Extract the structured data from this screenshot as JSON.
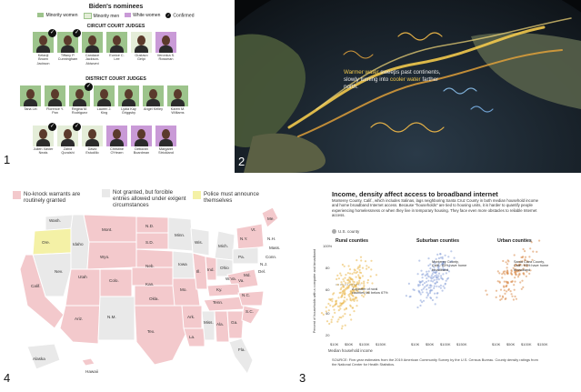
{
  "colors": {
    "minority_women": "#9dc48c",
    "minority_men": "#e4edd8",
    "white_women": "#c99ad7",
    "no_knock_granted": "#f3c9cc",
    "not_granted": "#e9e9e9",
    "police_announce": "#f4f1a6",
    "rural": "#e9b64b",
    "suburban": "#8aa3d9",
    "urban": "#d98a4b"
  },
  "panel_numbers": [
    "1",
    "2",
    "3",
    "4"
  ],
  "panel1": {
    "title": "Biden's nominees",
    "legend": [
      {
        "label": "Minority women",
        "color": "#9dc48c"
      },
      {
        "label": "Minority men",
        "color": "#e4edd8"
      },
      {
        "label": "White women",
        "color": "#c99ad7"
      },
      {
        "label": "Confirmed",
        "color": "#111111",
        "icon": "check-icon"
      }
    ],
    "circuit_title": "CIRCUIT COURT JUDGES",
    "district_title": "DISTRICT COURT JUDGES",
    "circuit": [
      {
        "name": "Ketanji Brown Jackson",
        "cat": "minority_women",
        "confirmed": true
      },
      {
        "name": "Tiffany P. Cunningham",
        "cat": "minority_women",
        "confirmed": true
      },
      {
        "name": "Candace Jackson-Akiwumi",
        "cat": "minority_women",
        "confirmed": false
      },
      {
        "name": "Eunice C. Lee",
        "cat": "minority_women",
        "confirmed": false
      },
      {
        "name": "Gustavo Gelpí",
        "cat": "minority_men",
        "confirmed": false
      },
      {
        "name": "Veronica S. Rossman",
        "cat": "white_women",
        "confirmed": false
      }
    ],
    "district_row1": [
      {
        "name": "Tana Lin",
        "cat": "minority_women",
        "confirmed": false
      },
      {
        "name": "Florence Y. Pan",
        "cat": "minority_women",
        "confirmed": false
      },
      {
        "name": "Regina M. Rodriguez",
        "cat": "minority_women",
        "confirmed": true
      },
      {
        "name": "Lauren J. King",
        "cat": "minority_women",
        "confirmed": false
      },
      {
        "name": "Lydia Kay Griggsby",
        "cat": "minority_women",
        "confirmed": false
      },
      {
        "name": "Angel Kelley",
        "cat": "minority_women",
        "confirmed": false
      },
      {
        "name": "Karen M. Williams",
        "cat": "minority_women",
        "confirmed": false
      }
    ],
    "district_row2": [
      {
        "name": "Julien Xavier Neals",
        "cat": "minority_men",
        "confirmed": true
      },
      {
        "name": "Zahid Quraishi",
        "cat": "minority_men",
        "confirmed": true
      },
      {
        "name": "David Estudillo",
        "cat": "minority_men",
        "confirmed": false
      },
      {
        "name": "Christine O'Hearn",
        "cat": "white_women",
        "confirmed": false
      },
      {
        "name": "Deborah Boardman",
        "cat": "white_women",
        "confirmed": false
      },
      {
        "name": "Margaret Strickland",
        "cat": "white_women",
        "confirmed": false
      }
    ]
  },
  "panel2": {
    "annotation_pre": "Warmer water",
    "annotation_mid": " sweeps past continents, slowly turning into ",
    "annotation_cool": "cooler water",
    "annotation_post": " farther north."
  },
  "panel4": {
    "legend": [
      {
        "label": "No-knock warrants are routinely granted",
        "color": "#f3c9cc"
      },
      {
        "label": "Not granted, but forcible entries allowed under exigent circumstances",
        "color": "#e9e9e9"
      },
      {
        "label": "Police must announce themselves",
        "color": "#f4f1a6"
      }
    ],
    "state_labels": [
      "Wash.",
      "Ore.",
      "Idaho",
      "Mont.",
      "N.D.",
      "Minn.",
      "Wis.",
      "Mich.",
      "N.Y.",
      "Vt.",
      "Me.",
      "N.H.",
      "Mass.",
      "Conn.",
      "N.J.",
      "Del.",
      "Md.",
      "Wyo.",
      "S.D.",
      "Iowa",
      "Ill.",
      "Ind.",
      "Ohio",
      "Pa.",
      "W.Va.",
      "Va.",
      "Nev.",
      "Utah",
      "Colo.",
      "Neb.",
      "Kan.",
      "Mo.",
      "Ky.",
      "Tenn.",
      "N.C.",
      "Calif.",
      "Ariz.",
      "N.M.",
      "Okla.",
      "Ark.",
      "Miss.",
      "Ala.",
      "Ga.",
      "S.C.",
      "Tex.",
      "La.",
      "Fla.",
      "Alaska",
      "Hawaii"
    ]
  },
  "panel3": {
    "title": "Income, density affect access to broadband internet",
    "description": "Monterey County, Calif., which includes Salinas, lags neighboring Santa Cruz County in both median household income and home broadband Internet access. Because \"households\" are tied to housing units, it is harder to quantify people experiencing homelessness or when they live in temporary housing. They face even more obstacles to reliable Internet access.",
    "legend_label": "U.S. county",
    "ylabel": "Percent of households with a computer and broadband",
    "xlabel": "Median household income",
    "source": "SOURCE: Five-year estimates from the 2019 American Community Survey by the U.S. Census Bureau. County density ratings from the National Center for Health Statistics.",
    "y_ticks": [
      "100%",
      "80",
      "60",
      "40",
      "20"
    ],
    "x_ticks": [
      "$10K",
      "$50K",
      "$100K",
      "$150K"
    ],
    "panels": [
      {
        "title": "Rural counties",
        "color": "#e9b64b",
        "annotation": "A quarter of rural counties fall below 67%"
      },
      {
        "title": "Suburban counties",
        "color": "#8aa3d9",
        "annotation": "Monterey County, Calif.: 83% have home broadband"
      },
      {
        "title": "Urban counties",
        "color": "#d98a4b",
        "annotation": "Santa Clara County, Calif.: 93% have home broadband"
      }
    ]
  }
}
